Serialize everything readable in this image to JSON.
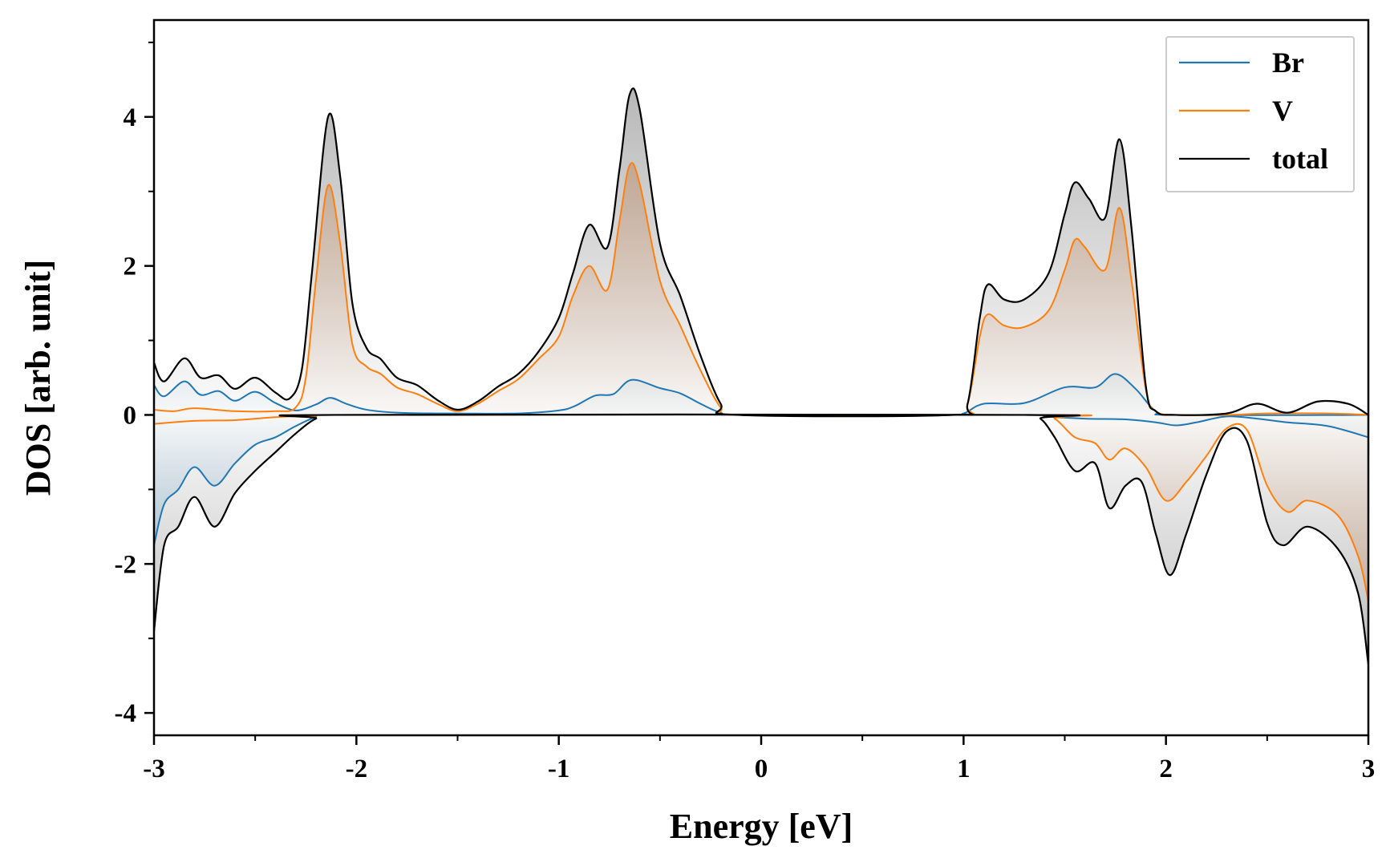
{
  "chart_data": {
    "type": "line",
    "title": "",
    "xlabel": "Energy [eV]",
    "ylabel": "DOS [arb. unit]",
    "xlim": [
      -3,
      3
    ],
    "ylim": [
      -4.3,
      5.3
    ],
    "xticks": [
      -3,
      -2,
      -1,
      0,
      1,
      2,
      3
    ],
    "xtick_labels": [
      "-3",
      "-2",
      "-1",
      "0",
      "1",
      "2",
      "3"
    ],
    "yticks": [
      -4,
      -2,
      0,
      2,
      4
    ],
    "ytick_labels": [
      "-4",
      "-2",
      "0",
      "2",
      "4"
    ],
    "grid": false,
    "legend_position": "top-right",
    "filled_under_curves": true,
    "series": [
      {
        "name": "Br",
        "color": "#1f77b4",
        "up": [
          [
            -3.0,
            0.4
          ],
          [
            -2.95,
            0.25
          ],
          [
            -2.85,
            0.45
          ],
          [
            -2.77,
            0.27
          ],
          [
            -2.68,
            0.32
          ],
          [
            -2.6,
            0.19
          ],
          [
            -2.5,
            0.31
          ],
          [
            -2.4,
            0.16
          ],
          [
            -2.3,
            0.06
          ],
          [
            -2.2,
            0.14
          ],
          [
            -2.13,
            0.23
          ],
          [
            -2.05,
            0.15
          ],
          [
            -1.95,
            0.07
          ],
          [
            -1.8,
            0.03
          ],
          [
            -1.6,
            0.02
          ],
          [
            -1.5,
            0.02
          ],
          [
            -1.2,
            0.02
          ],
          [
            -1.0,
            0.06
          ],
          [
            -0.92,
            0.12
          ],
          [
            -0.82,
            0.26
          ],
          [
            -0.73,
            0.28
          ],
          [
            -0.64,
            0.47
          ],
          [
            -0.5,
            0.36
          ],
          [
            -0.4,
            0.29
          ],
          [
            -0.3,
            0.15
          ],
          [
            -0.2,
            0.03
          ],
          [
            -0.1,
            0.0
          ],
          [
            0.9,
            0.0
          ],
          [
            1.0,
            0.02
          ],
          [
            1.1,
            0.15
          ],
          [
            1.3,
            0.16
          ],
          [
            1.5,
            0.37
          ],
          [
            1.65,
            0.37
          ],
          [
            1.75,
            0.55
          ],
          [
            1.85,
            0.35
          ],
          [
            1.95,
            0.05
          ],
          [
            2.05,
            0.0
          ],
          [
            3.0,
            0.0
          ]
        ],
        "down": [
          [
            -3.0,
            -1.75
          ],
          [
            -2.95,
            -1.2
          ],
          [
            -2.88,
            -1.0
          ],
          [
            -2.8,
            -0.7
          ],
          [
            -2.7,
            -0.95
          ],
          [
            -2.6,
            -0.65
          ],
          [
            -2.5,
            -0.4
          ],
          [
            -2.4,
            -0.3
          ],
          [
            -2.3,
            -0.15
          ],
          [
            -2.2,
            -0.03
          ],
          [
            -2.1,
            0.0
          ],
          [
            1.3,
            0.0
          ],
          [
            1.4,
            -0.02
          ],
          [
            1.6,
            -0.05
          ],
          [
            1.8,
            -0.06
          ],
          [
            1.95,
            -0.1
          ],
          [
            2.05,
            -0.14
          ],
          [
            2.15,
            -0.1
          ],
          [
            2.3,
            -0.02
          ],
          [
            2.45,
            -0.05
          ],
          [
            2.6,
            -0.1
          ],
          [
            2.8,
            -0.15
          ],
          [
            3.0,
            -0.3
          ]
        ]
      },
      {
        "name": "V",
        "color": "#ff7f0e",
        "up": [
          [
            -3.0,
            0.07
          ],
          [
            -2.9,
            0.05
          ],
          [
            -2.8,
            0.09
          ],
          [
            -2.6,
            0.05
          ],
          [
            -2.4,
            0.05
          ],
          [
            -2.3,
            0.1
          ],
          [
            -2.25,
            0.5
          ],
          [
            -2.2,
            1.8
          ],
          [
            -2.14,
            3.08
          ],
          [
            -2.08,
            2.3
          ],
          [
            -2.02,
            0.95
          ],
          [
            -1.95,
            0.65
          ],
          [
            -1.88,
            0.55
          ],
          [
            -1.8,
            0.37
          ],
          [
            -1.7,
            0.28
          ],
          [
            -1.6,
            0.15
          ],
          [
            -1.5,
            0.05
          ],
          [
            -1.4,
            0.15
          ],
          [
            -1.3,
            0.32
          ],
          [
            -1.2,
            0.48
          ],
          [
            -1.1,
            0.75
          ],
          [
            -1.0,
            1.05
          ],
          [
            -0.93,
            1.6
          ],
          [
            -0.85,
            2.0
          ],
          [
            -0.76,
            1.68
          ],
          [
            -0.7,
            2.6
          ],
          [
            -0.65,
            3.35
          ],
          [
            -0.6,
            3.1
          ],
          [
            -0.5,
            1.8
          ],
          [
            -0.4,
            1.2
          ],
          [
            -0.3,
            0.6
          ],
          [
            -0.2,
            0.1
          ],
          [
            -0.12,
            0.0
          ],
          [
            0.95,
            0.0
          ],
          [
            1.02,
            0.15
          ],
          [
            1.08,
            1.05
          ],
          [
            1.12,
            1.35
          ],
          [
            1.2,
            1.2
          ],
          [
            1.3,
            1.18
          ],
          [
            1.42,
            1.4
          ],
          [
            1.5,
            1.95
          ],
          [
            1.55,
            2.35
          ],
          [
            1.6,
            2.25
          ],
          [
            1.7,
            1.95
          ],
          [
            1.77,
            2.78
          ],
          [
            1.83,
            1.8
          ],
          [
            1.9,
            0.35
          ],
          [
            1.95,
            0.05
          ],
          [
            2.05,
            0.0
          ],
          [
            2.3,
            0.0
          ],
          [
            2.5,
            0.02
          ],
          [
            2.8,
            0.02
          ],
          [
            3.0,
            0.0
          ]
        ],
        "down": [
          [
            -3.0,
            -0.12
          ],
          [
            -2.8,
            -0.08
          ],
          [
            -2.6,
            -0.07
          ],
          [
            -2.4,
            -0.03
          ],
          [
            -2.2,
            -0.01
          ],
          [
            -2.1,
            0.0
          ],
          [
            1.35,
            0.0
          ],
          [
            1.45,
            -0.05
          ],
          [
            1.55,
            -0.3
          ],
          [
            1.65,
            -0.38
          ],
          [
            1.72,
            -0.6
          ],
          [
            1.8,
            -0.45
          ],
          [
            1.9,
            -0.7
          ],
          [
            2.0,
            -1.15
          ],
          [
            2.1,
            -0.9
          ],
          [
            2.2,
            -0.55
          ],
          [
            2.3,
            -0.18
          ],
          [
            2.4,
            -0.2
          ],
          [
            2.5,
            -0.95
          ],
          [
            2.6,
            -1.3
          ],
          [
            2.7,
            -1.15
          ],
          [
            2.85,
            -1.35
          ],
          [
            2.95,
            -1.9
          ],
          [
            3.0,
            -2.5
          ]
        ]
      },
      {
        "name": "total",
        "color": "#000000",
        "up": [
          [
            -3.0,
            0.7
          ],
          [
            -2.95,
            0.45
          ],
          [
            -2.85,
            0.76
          ],
          [
            -2.77,
            0.5
          ],
          [
            -2.68,
            0.53
          ],
          [
            -2.6,
            0.35
          ],
          [
            -2.5,
            0.5
          ],
          [
            -2.4,
            0.3
          ],
          [
            -2.33,
            0.22
          ],
          [
            -2.27,
            0.6
          ],
          [
            -2.22,
            1.9
          ],
          [
            -2.14,
            4.0
          ],
          [
            -2.08,
            3.2
          ],
          [
            -2.02,
            1.5
          ],
          [
            -1.95,
            0.9
          ],
          [
            -1.88,
            0.75
          ],
          [
            -1.8,
            0.5
          ],
          [
            -1.7,
            0.4
          ],
          [
            -1.6,
            0.2
          ],
          [
            -1.5,
            0.07
          ],
          [
            -1.4,
            0.18
          ],
          [
            -1.3,
            0.38
          ],
          [
            -1.2,
            0.55
          ],
          [
            -1.1,
            0.85
          ],
          [
            -1.0,
            1.3
          ],
          [
            -0.93,
            1.9
          ],
          [
            -0.85,
            2.55
          ],
          [
            -0.76,
            2.25
          ],
          [
            -0.7,
            3.3
          ],
          [
            -0.65,
            4.3
          ],
          [
            -0.6,
            4.1
          ],
          [
            -0.5,
            2.3
          ],
          [
            -0.4,
            1.6
          ],
          [
            -0.3,
            0.8
          ],
          [
            -0.2,
            0.15
          ],
          [
            -0.12,
            0.0
          ],
          [
            0.95,
            0.0
          ],
          [
            1.02,
            0.15
          ],
          [
            1.08,
            1.3
          ],
          [
            1.12,
            1.75
          ],
          [
            1.2,
            1.55
          ],
          [
            1.3,
            1.55
          ],
          [
            1.42,
            1.9
          ],
          [
            1.5,
            2.7
          ],
          [
            1.55,
            3.12
          ],
          [
            1.62,
            2.9
          ],
          [
            1.7,
            2.65
          ],
          [
            1.77,
            3.7
          ],
          [
            1.83,
            2.5
          ],
          [
            1.9,
            0.4
          ],
          [
            1.95,
            0.05
          ],
          [
            2.05,
            0.0
          ],
          [
            2.3,
            0.02
          ],
          [
            2.45,
            0.15
          ],
          [
            2.6,
            0.03
          ],
          [
            2.75,
            0.18
          ],
          [
            2.9,
            0.15
          ],
          [
            3.0,
            0.0
          ]
        ],
        "down": [
          [
            -3.0,
            -2.9
          ],
          [
            -2.95,
            -1.75
          ],
          [
            -2.88,
            -1.5
          ],
          [
            -2.8,
            -1.1
          ],
          [
            -2.7,
            -1.5
          ],
          [
            -2.6,
            -1.05
          ],
          [
            -2.5,
            -0.75
          ],
          [
            -2.4,
            -0.5
          ],
          [
            -2.3,
            -0.25
          ],
          [
            -2.2,
            -0.05
          ],
          [
            -2.1,
            0.0
          ],
          [
            1.3,
            0.0
          ],
          [
            1.38,
            -0.05
          ],
          [
            1.45,
            -0.3
          ],
          [
            1.55,
            -0.75
          ],
          [
            1.65,
            -0.65
          ],
          [
            1.72,
            -1.25
          ],
          [
            1.8,
            -0.95
          ],
          [
            1.88,
            -0.9
          ],
          [
            1.95,
            -1.6
          ],
          [
            2.02,
            -2.15
          ],
          [
            2.1,
            -1.6
          ],
          [
            2.2,
            -0.8
          ],
          [
            2.3,
            -0.22
          ],
          [
            2.4,
            -0.35
          ],
          [
            2.5,
            -1.45
          ],
          [
            2.58,
            -1.75
          ],
          [
            2.7,
            -1.5
          ],
          [
            2.85,
            -1.8
          ],
          [
            2.95,
            -2.4
          ],
          [
            3.0,
            -3.35
          ]
        ]
      }
    ]
  }
}
